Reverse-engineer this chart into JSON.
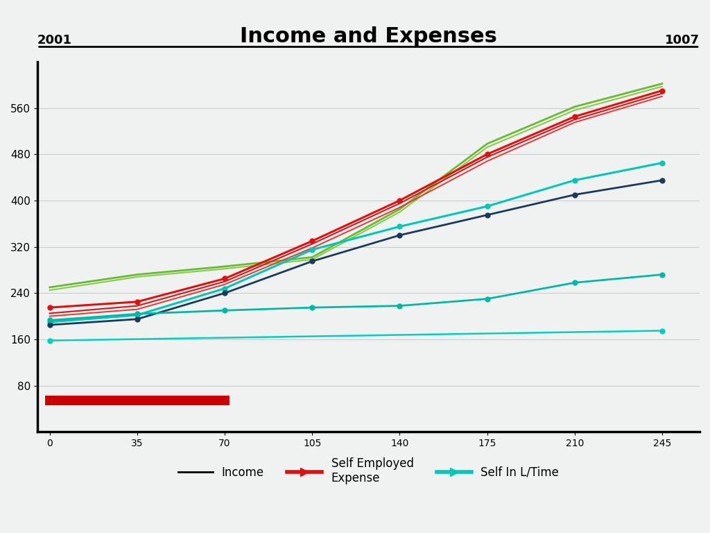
{
  "title": "Income and Expenses",
  "x_ticks": [
    0,
    35,
    70,
    105,
    140,
    175,
    210,
    245
  ],
  "x_tick_labels": [
    "0",
    "35",
    "70",
    "105",
    "140",
    "175",
    "210",
    "245"
  ],
  "y_ticks": [
    80,
    160,
    240,
    320,
    400,
    480,
    560
  ],
  "y_lim": [
    0,
    640
  ],
  "x_lim": [
    -5,
    260
  ],
  "background_color": "#f0f2f2",
  "plot_bg_color": "#f0f2f2",
  "title_fontsize": 22,
  "top_left_label": "2001",
  "top_right_label": "1007",
  "series": [
    {
      "name": "red_main",
      "color": "#dd1111",
      "x": [
        0,
        35,
        70,
        105,
        140,
        175,
        210,
        245
      ],
      "y": [
        215,
        225,
        265,
        330,
        400,
        480,
        545,
        590
      ],
      "marker": "o",
      "markersize": 5,
      "linewidth": 2.2,
      "zorder": 5
    },
    {
      "name": "red_upper",
      "color": "#cc2222",
      "x": [
        0,
        35,
        70,
        105,
        140,
        175,
        210,
        245
      ],
      "y": [
        205,
        218,
        260,
        325,
        395,
        475,
        540,
        585
      ],
      "marker": null,
      "markersize": 0,
      "linewidth": 1.6,
      "zorder": 4
    },
    {
      "name": "red_lower",
      "color": "#ee3333",
      "x": [
        0,
        35,
        70,
        105,
        140,
        175,
        210,
        245
      ],
      "y": [
        200,
        212,
        255,
        318,
        388,
        468,
        535,
        580
      ],
      "marker": null,
      "markersize": 0,
      "linewidth": 1.4,
      "zorder": 4
    },
    {
      "name": "teal_upper",
      "color": "#00c8b8",
      "x": [
        0,
        35,
        70,
        105,
        140,
        175,
        210,
        245
      ],
      "y": [
        190,
        202,
        248,
        315,
        355,
        390,
        435,
        465
      ],
      "marker": "o",
      "markersize": 5,
      "linewidth": 2.2,
      "zorder": 5
    },
    {
      "name": "navy_line",
      "color": "#1a3a5c",
      "x": [
        0,
        35,
        70,
        105,
        140,
        175,
        210,
        245
      ],
      "y": [
        185,
        195,
        240,
        295,
        340,
        375,
        410,
        435
      ],
      "marker": "o",
      "markersize": 5,
      "linewidth": 2.0,
      "zorder": 5
    },
    {
      "name": "teal_flat",
      "color": "#00b8a8",
      "x": [
        0,
        35,
        70,
        105,
        140,
        175,
        210,
        245
      ],
      "y": [
        193,
        204,
        210,
        215,
        218,
        230,
        258,
        272
      ],
      "marker": "o",
      "markersize": 5,
      "linewidth": 2.0,
      "zorder": 5
    },
    {
      "name": "green_main",
      "color": "#66bb33",
      "x": [
        0,
        35,
        70,
        105,
        140,
        175,
        210,
        245
      ],
      "y": [
        250,
        272,
        286,
        302,
        385,
        498,
        562,
        602
      ],
      "marker": null,
      "markersize": 0,
      "linewidth": 2.0,
      "zorder": 3
    },
    {
      "name": "green_second",
      "color": "#88cc44",
      "x": [
        0,
        35,
        70,
        105,
        140,
        175,
        210,
        245
      ],
      "y": [
        245,
        268,
        282,
        298,
        380,
        492,
        556,
        597
      ],
      "marker": null,
      "markersize": 0,
      "linewidth": 1.5,
      "zorder": 3
    },
    {
      "name": "red_bottom_flat",
      "color": "#cc0000",
      "x": [
        0,
        70
      ],
      "y": [
        55,
        55
      ],
      "marker": null,
      "markersize": 0,
      "linewidth": 10,
      "zorder": 6
    },
    {
      "name": "teal_second_flat",
      "color": "#00d0c0",
      "x": [
        0,
        245
      ],
      "y": [
        158,
        175
      ],
      "marker": "o",
      "markersize": 5,
      "linewidth": 1.8,
      "zorder": 4
    }
  ],
  "legend_labels": [
    "Income",
    "Self Employed\nExpense",
    "Self In L/Time"
  ],
  "legend_colors": [
    "#dd1111",
    "#dd1111",
    "#00c8b8"
  ]
}
